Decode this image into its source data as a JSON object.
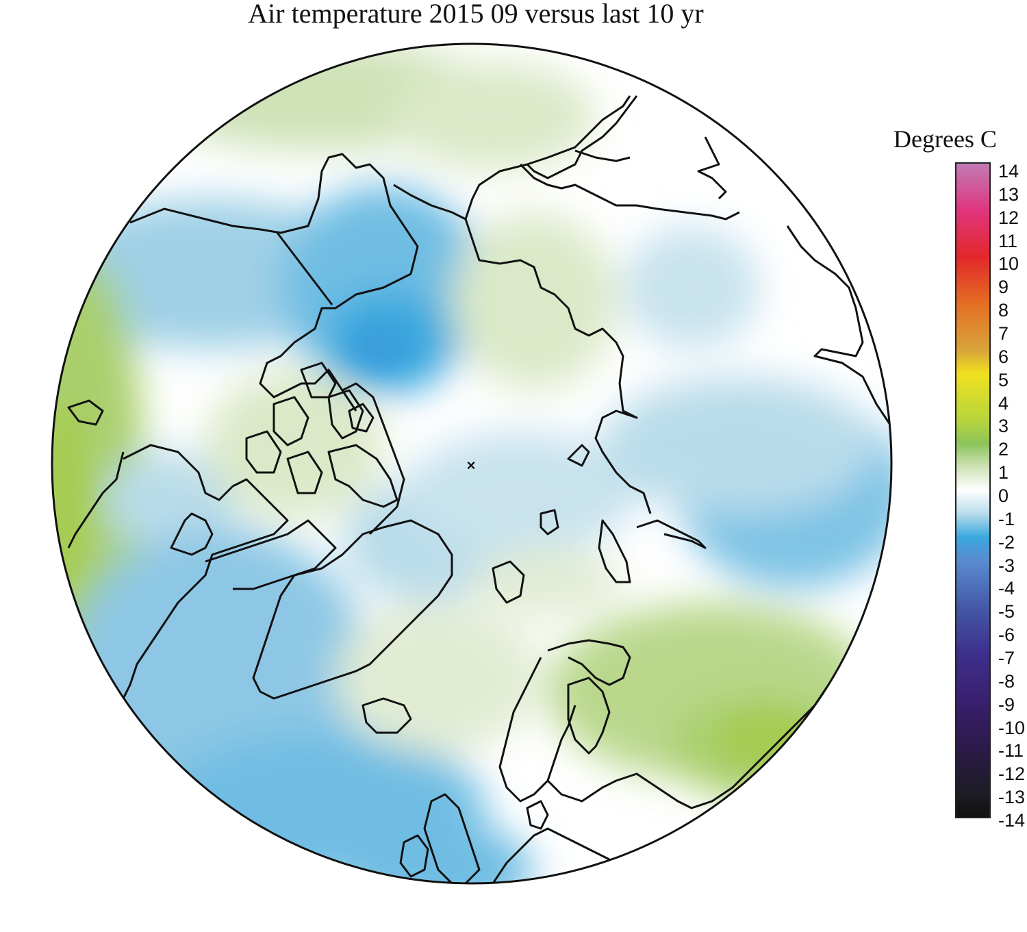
{
  "title": "Air temperature 2015 09 versus last 10 yr",
  "legend": {
    "title": "Degrees C",
    "ticks": [
      "14",
      "13",
      "12",
      "11",
      "10",
      "9",
      "8",
      "7",
      "6",
      "5",
      "4",
      "3",
      "2",
      "1",
      "0",
      "-1",
      "-2",
      "-3",
      "-4",
      "-5",
      "-6",
      "-7",
      "-8",
      "-9",
      "-10",
      "-11",
      "-12",
      "-13",
      "-14"
    ],
    "gradient_stops": [
      {
        "value": 14,
        "color": "#c27bb5"
      },
      {
        "value": 12,
        "color": "#e0357f"
      },
      {
        "value": 10,
        "color": "#e3282a"
      },
      {
        "value": 8,
        "color": "#e46e24"
      },
      {
        "value": 6,
        "color": "#d8a43a"
      },
      {
        "value": 5,
        "color": "#f0e020"
      },
      {
        "value": 3,
        "color": "#b7d53b"
      },
      {
        "value": 2,
        "color": "#8cc45a"
      },
      {
        "value": 1,
        "color": "#cfe2b7"
      },
      {
        "value": 0,
        "color": "#ffffff"
      },
      {
        "value": -1,
        "color": "#b9dcea"
      },
      {
        "value": -2,
        "color": "#3ba9df"
      },
      {
        "value": -3,
        "color": "#5a8bd0"
      },
      {
        "value": -5,
        "color": "#4459a8"
      },
      {
        "value": -7,
        "color": "#3d2f8c"
      },
      {
        "value": -9,
        "color": "#3a2070"
      },
      {
        "value": -11,
        "color": "#2c1a4a"
      },
      {
        "value": -13,
        "color": "#1c1c24"
      },
      {
        "value": -14,
        "color": "#111111"
      }
    ]
  },
  "map": {
    "projection": "north polar stereographic",
    "pole_marker": "×"
  }
}
